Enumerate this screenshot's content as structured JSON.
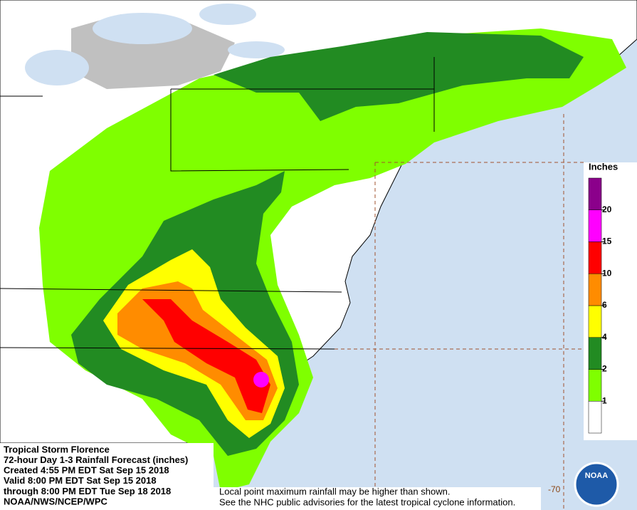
{
  "header": {
    "lines": [
      "Tropical Storm Florence",
      "72-hour Day 1-3 Rainfall Forecast (inches)",
      "Created 4:55 PM EDT Sat Sep 15 2018",
      "Valid 8:00 PM EDT Sat Sep 15 2018",
      "through 8:00 PM EDT Tue Sep 18 2018",
      "NOAA/NWS/NCEP/WPC"
    ]
  },
  "footnotes": [
    "Local point maximum rainfall may be higher than shown.",
    "See the NHC public advisories for the latest tropical cyclone information."
  ],
  "longitude_label": "-70",
  "logo_text": "NOAA",
  "legend": {
    "title": "Inches",
    "levels": [
      1,
      2,
      4,
      6,
      10,
      15,
      20
    ],
    "colors": [
      "#ffffff",
      "#7fff00",
      "#228b22",
      "#ffff00",
      "#ff8c00",
      "#ff0000",
      "#ff00ff",
      "#8b008b"
    ]
  }
}
